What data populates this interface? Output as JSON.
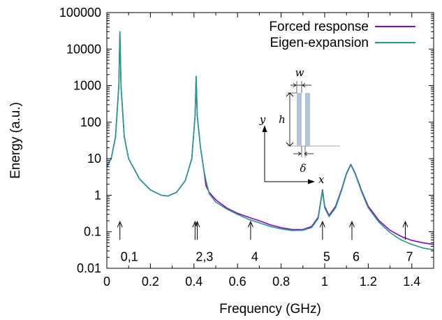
{
  "chart_data": {
    "type": "line",
    "xlabel": "Frequency (GHz)",
    "ylabel": "Energy (a.u.)",
    "xlim": [
      0,
      1.5
    ],
    "ylim": [
      0.01,
      100000
    ],
    "yscale": "log",
    "grid": false,
    "legend_position": "top-right",
    "x_ticks": [
      "0",
      "0.2",
      "0.4",
      "0.6",
      "0.8",
      "1",
      "1.2",
      "1.4"
    ],
    "y_ticks": [
      "0.01",
      "0.1",
      "1",
      "10",
      "100",
      "1000",
      "10000",
      "100000"
    ],
    "series": [
      {
        "name": "Forced response",
        "color": "#9400d3",
        "points": [
          [
            0,
            6
          ],
          [
            0.02,
            10
          ],
          [
            0.04,
            40
          ],
          [
            0.055,
            1000
          ],
          [
            0.06,
            30000
          ],
          [
            0.065,
            1000
          ],
          [
            0.08,
            40
          ],
          [
            0.1,
            10
          ],
          [
            0.15,
            2.8
          ],
          [
            0.2,
            1.4
          ],
          [
            0.25,
            1.0
          ],
          [
            0.28,
            0.95
          ],
          [
            0.32,
            1.2
          ],
          [
            0.36,
            2.5
          ],
          [
            0.39,
            10
          ],
          [
            0.405,
            150
          ],
          [
            0.41,
            1800
          ],
          [
            0.415,
            150
          ],
          [
            0.43,
            20
          ],
          [
            0.445,
            5
          ],
          [
            0.455,
            1.8
          ],
          [
            0.47,
            1.2
          ],
          [
            0.5,
            0.75
          ],
          [
            0.55,
            0.45
          ],
          [
            0.6,
            0.32
          ],
          [
            0.65,
            0.25
          ],
          [
            0.7,
            0.2
          ],
          [
            0.75,
            0.155
          ],
          [
            0.8,
            0.13
          ],
          [
            0.85,
            0.115
          ],
          [
            0.9,
            0.115
          ],
          [
            0.94,
            0.14
          ],
          [
            0.97,
            0.25
          ],
          [
            0.99,
            1.4
          ],
          [
            1.0,
            0.5
          ],
          [
            1.02,
            0.28
          ],
          [
            1.05,
            0.5
          ],
          [
            1.08,
            1.6
          ],
          [
            1.1,
            4
          ],
          [
            1.12,
            7
          ],
          [
            1.14,
            4
          ],
          [
            1.17,
            1.3
          ],
          [
            1.2,
            0.5
          ],
          [
            1.25,
            0.2
          ],
          [
            1.3,
            0.11
          ],
          [
            1.35,
            0.075
          ],
          [
            1.4,
            0.058
          ],
          [
            1.45,
            0.05
          ],
          [
            1.5,
            0.045
          ]
        ]
      },
      {
        "name": "Eigen-expansion",
        "color": "#1a9e8a",
        "points": [
          [
            0,
            6
          ],
          [
            0.02,
            10
          ],
          [
            0.04,
            40
          ],
          [
            0.055,
            1000
          ],
          [
            0.06,
            30000
          ],
          [
            0.065,
            1000
          ],
          [
            0.08,
            40
          ],
          [
            0.1,
            10
          ],
          [
            0.15,
            2.8
          ],
          [
            0.2,
            1.4
          ],
          [
            0.25,
            1.0
          ],
          [
            0.28,
            0.95
          ],
          [
            0.32,
            1.2
          ],
          [
            0.36,
            2.5
          ],
          [
            0.39,
            10
          ],
          [
            0.405,
            150
          ],
          [
            0.41,
            1800
          ],
          [
            0.415,
            150
          ],
          [
            0.43,
            20
          ],
          [
            0.445,
            5
          ],
          [
            0.455,
            2.5
          ],
          [
            0.47,
            1.1
          ],
          [
            0.5,
            0.65
          ],
          [
            0.55,
            0.42
          ],
          [
            0.6,
            0.3
          ],
          [
            0.65,
            0.22
          ],
          [
            0.7,
            0.175
          ],
          [
            0.75,
            0.14
          ],
          [
            0.8,
            0.12
          ],
          [
            0.85,
            0.108
          ],
          [
            0.9,
            0.11
          ],
          [
            0.94,
            0.13
          ],
          [
            0.97,
            0.23
          ],
          [
            0.99,
            1.3
          ],
          [
            1.0,
            0.45
          ],
          [
            1.02,
            0.26
          ],
          [
            1.05,
            0.45
          ],
          [
            1.08,
            1.5
          ],
          [
            1.1,
            3.8
          ],
          [
            1.12,
            6.8
          ],
          [
            1.14,
            3.8
          ],
          [
            1.17,
            1.2
          ],
          [
            1.2,
            0.45
          ],
          [
            1.25,
            0.18
          ],
          [
            1.3,
            0.095
          ],
          [
            1.35,
            0.06
          ],
          [
            1.4,
            0.045
          ],
          [
            1.45,
            0.036
          ],
          [
            1.5,
            0.032
          ]
        ]
      }
    ],
    "markers": [
      {
        "label": "0,1",
        "x": [
          0.06
        ]
      },
      {
        "label": "2,3",
        "x": [
          0.405,
          0.415
        ]
      },
      {
        "label": "4",
        "x": [
          0.66
        ]
      },
      {
        "label": "5",
        "x": [
          0.99
        ]
      },
      {
        "label": "6",
        "x": [
          1.125
        ]
      },
      {
        "label": "7",
        "x": [
          1.37
        ]
      }
    ],
    "inset": {
      "labels": {
        "w": "w",
        "h": "h",
        "delta": "δ",
        "x": "x",
        "y": "y"
      },
      "bar_color": "#b0c4de"
    }
  }
}
